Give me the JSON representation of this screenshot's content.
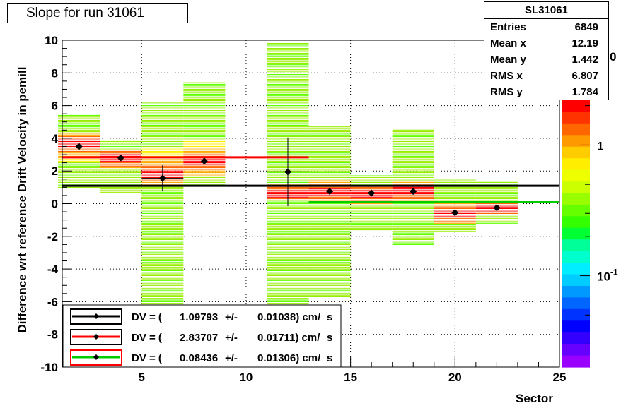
{
  "chart_data": {
    "type": "scatter",
    "title": "Slope for run 31061",
    "xlabel": "Sector",
    "ylabel": "Difference wrt reference Drift Velocity in pemill",
    "xlim": [
      1.2,
      25
    ],
    "ylim": [
      -10,
      10
    ],
    "x_ticks": [
      "5",
      "10",
      "15",
      "20",
      "25"
    ],
    "x_tick_values": [
      5,
      10,
      15,
      20,
      25
    ],
    "y_ticks": [
      "10",
      "8",
      "6",
      "4",
      "2",
      "0",
      "-2",
      "-4",
      "-6",
      "-8",
      "-10"
    ],
    "y_tick_values": [
      10,
      8,
      6,
      4,
      2,
      0,
      -2,
      -4,
      -6,
      -8,
      -10
    ],
    "grid": true,
    "colorbar": {
      "scale": "log",
      "labels": [
        {
          "text": "1",
          "value": 1
        },
        {
          "text": "10",
          "sup": "-1",
          "value": 0.1
        }
      ],
      "top_label_fragment": "0"
    },
    "histogram_2d": {
      "name": "SL31061",
      "bin_width": 2,
      "columns": [
        {
          "x_center": 2,
          "y_min": 1.0,
          "y_max": 5.4,
          "core_min": 2.6,
          "core_max": 4.4,
          "peak": 3.7
        },
        {
          "x_center": 4,
          "y_min": 0.7,
          "y_max": 3.8,
          "core_min": 2.2,
          "core_max": 3.3,
          "peak": 2.8
        },
        {
          "x_center": 6,
          "y_min": -6.3,
          "y_max": 6.2,
          "core_min": 1.0,
          "core_max": 3.4,
          "peak": 1.8
        },
        {
          "x_center": 8,
          "y_min": 1.1,
          "y_max": 7.4,
          "core_min": 1.7,
          "core_max": 3.9,
          "peak": 2.6
        },
        {
          "x_center": 12,
          "y_min": -6.2,
          "y_max": 9.8,
          "core_min": 0.2,
          "core_max": 1.2,
          "peak": 0.6
        },
        {
          "x_center": 14,
          "y_min": -5.7,
          "y_max": 4.7,
          "core_min": 0.0,
          "core_max": 1.4,
          "peak": 0.7
        },
        {
          "x_center": 16,
          "y_min": -1.6,
          "y_max": 1.7,
          "core_min": 0.0,
          "core_max": 1.2,
          "peak": 0.6
        },
        {
          "x_center": 18,
          "y_min": -2.5,
          "y_max": 4.5,
          "core_min": 0.2,
          "core_max": 1.4,
          "peak": 0.8
        },
        {
          "x_center": 20,
          "y_min": -1.7,
          "y_max": 1.5,
          "core_min": -1.2,
          "core_max": 0.1,
          "peak": -0.6
        },
        {
          "x_center": 22,
          "y_min": -1.2,
          "y_max": 1.3,
          "core_min": -0.6,
          "core_max": 0.1,
          "peak": -0.3
        }
      ]
    },
    "points": [
      {
        "x": 2,
        "y": 3.5,
        "xerr": 0,
        "yerr": 0
      },
      {
        "x": 4,
        "y": 2.8,
        "xerr": 0,
        "yerr": 0
      },
      {
        "x": 6,
        "y": 1.55,
        "xerr": 1,
        "yerr": 0.8
      },
      {
        "x": 8,
        "y": 2.6,
        "xerr": 0,
        "yerr": 0
      },
      {
        "x": 12,
        "y": 1.95,
        "xerr": 1,
        "yerr": 2.1
      },
      {
        "x": 14,
        "y": 0.75,
        "xerr": 0,
        "yerr": 0
      },
      {
        "x": 16,
        "y": 0.65,
        "xerr": 0,
        "yerr": 0
      },
      {
        "x": 18,
        "y": 0.75,
        "xerr": 0,
        "yerr": 0
      },
      {
        "x": 20,
        "y": -0.55,
        "xerr": 0,
        "yerr": 0
      },
      {
        "x": 22,
        "y": -0.25,
        "xerr": 0,
        "yerr": 0
      }
    ],
    "fit_lines": [
      {
        "color": "#000000",
        "x1": 1.2,
        "x2": 25,
        "y": 1.09793
      },
      {
        "color": "#ff0000",
        "x1": 1.2,
        "x2": 13,
        "y": 2.83707
      },
      {
        "color": "#00cc00",
        "x1": 13,
        "x2": 25,
        "y": 0.08436
      }
    ],
    "legend": {
      "placement": "bottom-left",
      "entries": [
        {
          "line_color": "#000000",
          "box_color": "#000000",
          "prefix": "DV = (",
          "value": "1.09793",
          "pm": "+/-",
          "err": "0.01038) cm/",
          "unit_overlay": "s"
        },
        {
          "line_color": "#ff0000",
          "box_color": "#000000",
          "prefix": "DV = (",
          "value": "2.83707",
          "pm": "+/-",
          "err": "0.01711) cm/",
          "unit_overlay": "s"
        },
        {
          "line_color": "#00cc00",
          "box_color": "#ff0000",
          "prefix": "DV = (",
          "value": "0.08436",
          "pm": "+/-",
          "err": "0.01306) cm/",
          "unit_overlay": "s"
        }
      ]
    }
  },
  "stats_box": {
    "title": "SL31061",
    "rows": [
      {
        "label": "Entries",
        "value": "6849"
      },
      {
        "label": "Mean x",
        "value": "12.19"
      },
      {
        "label": "Mean y",
        "value": "1.442"
      },
      {
        "label": "RMS x",
        "value": "6.807"
      },
      {
        "label": "RMS y",
        "value": "1.784"
      }
    ]
  },
  "colors": {
    "colorbar": [
      "#ff0000",
      "#ff3300",
      "#ff6600",
      "#ff9900",
      "#ffcc00",
      "#ffee00",
      "#eeff00",
      "#ccff00",
      "#99ff00",
      "#66ff00",
      "#33ff00",
      "#00ff33",
      "#00ff99",
      "#00ffcc",
      "#00eeff",
      "#00ccff",
      "#0099ff",
      "#0066ff",
      "#0033ff",
      "#0000ff",
      "#3300ff",
      "#6600ff",
      "#9900ff"
    ]
  }
}
